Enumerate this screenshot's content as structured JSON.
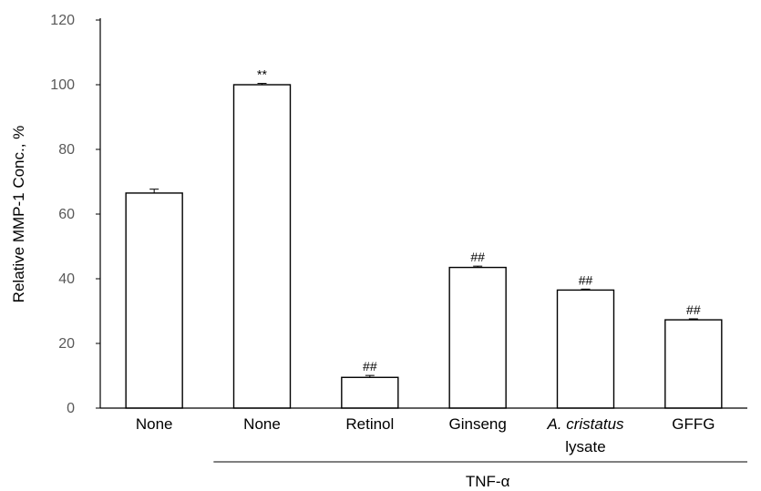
{
  "chart_data": {
    "type": "bar",
    "categories": [
      {
        "line1": "None",
        "line2": "",
        "italic1": false
      },
      {
        "line1": "None",
        "line2": "",
        "italic1": false
      },
      {
        "line1": "Retinol",
        "line2": "",
        "italic1": false
      },
      {
        "line1": "Ginseng",
        "line2": "",
        "italic1": false
      },
      {
        "line1": "A. cristatus",
        "line2": "lysate",
        "italic1": true
      },
      {
        "line1": "GFFG",
        "line2": "",
        "italic1": false
      }
    ],
    "values": [
      66.5,
      100,
      9.5,
      43.5,
      36.5,
      27.3
    ],
    "errors": [
      1.2,
      0.4,
      0.6,
      0.4,
      0.3,
      0.3
    ],
    "significance": [
      "",
      "**",
      "##",
      "##",
      "##",
      "##"
    ],
    "ylabel": "Relative MMP-1 Conc., %",
    "ylim": [
      0,
      120
    ],
    "yticks": [
      0,
      20,
      40,
      60,
      80,
      100,
      120
    ],
    "group_label": "TNF-α",
    "grid": false,
    "colors": {
      "bar_fill": "#ffffff",
      "bar_stroke": "#000000",
      "axis": "#000000",
      "tick_text": "#595959"
    }
  }
}
